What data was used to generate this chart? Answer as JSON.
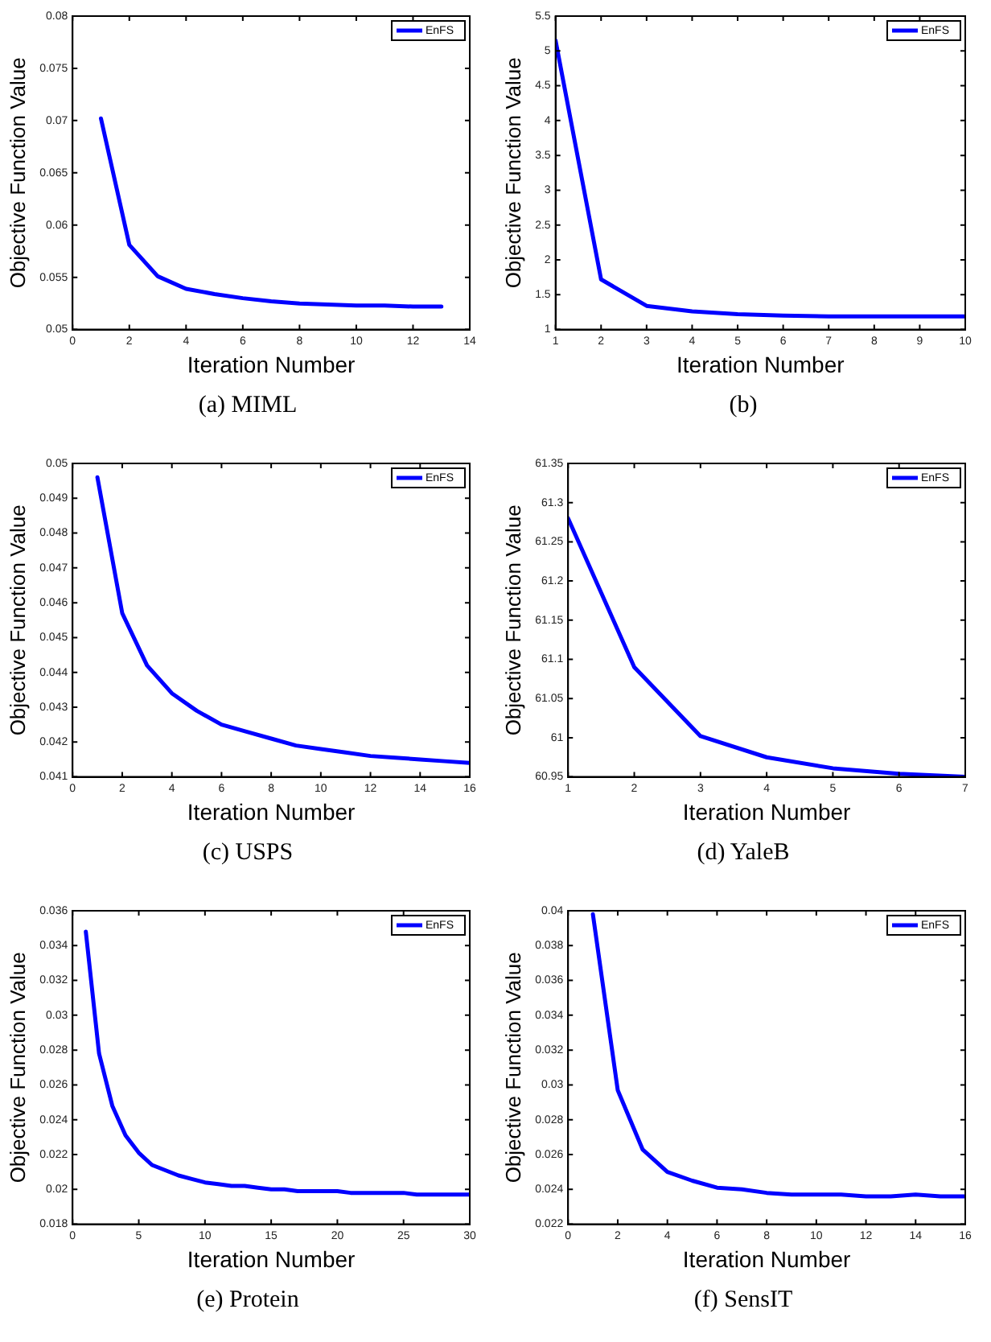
{
  "chart_data": [
    {
      "type": "line",
      "title": "(a) MIML",
      "xlabel": "Iteration Number",
      "ylabel": "Objective Function Value",
      "legend": "top right",
      "grid": false,
      "marker": "none",
      "line_style": "solid",
      "xlim": [
        0,
        14
      ],
      "xticks": [
        0,
        2,
        4,
        6,
        8,
        10,
        12,
        14
      ],
      "ylim": [
        0.05,
        0.08
      ],
      "yticks": [
        0.05,
        0.055,
        0.06,
        0.065,
        0.07,
        0.075,
        0.08
      ],
      "x": [
        1,
        2,
        3,
        4,
        5,
        6,
        7,
        8,
        9,
        10,
        11,
        12,
        13
      ],
      "series": [
        {
          "name": "EnFS",
          "color": "#0000ff",
          "values": [
            0.0702,
            0.0581,
            0.0551,
            0.0539,
            0.0534,
            0.053,
            0.0527,
            0.0525,
            0.0524,
            0.0523,
            0.0523,
            0.0522,
            0.0522
          ]
        }
      ]
    },
    {
      "type": "line",
      "title": "(b)",
      "xlabel": "Iteration Number",
      "ylabel": "Objective Function Value",
      "legend": "top right",
      "grid": false,
      "marker": "none",
      "line_style": "solid",
      "xlim": [
        1,
        10
      ],
      "xticks": [
        1,
        2,
        3,
        4,
        5,
        6,
        7,
        8,
        9,
        10
      ],
      "ylim": [
        1,
        5.5
      ],
      "yticks": [
        1,
        1.5,
        2,
        2.5,
        3,
        3.5,
        4,
        4.5,
        5,
        5.5
      ],
      "x": [
        1,
        2,
        3,
        4,
        5,
        6,
        7,
        8,
        9,
        10
      ],
      "series": [
        {
          "name": "EnFS",
          "color": "#0000ff",
          "values": [
            5.15,
            1.72,
            1.34,
            1.26,
            1.22,
            1.2,
            1.19,
            1.19,
            1.19,
            1.19
          ]
        }
      ]
    },
    {
      "type": "line",
      "title": "(c) USPS",
      "xlabel": "Iteration Number",
      "ylabel": "Objective Function Value",
      "legend": "top right",
      "grid": false,
      "marker": "none",
      "line_style": "solid",
      "xlim": [
        0,
        16
      ],
      "xticks": [
        0,
        2,
        4,
        6,
        8,
        10,
        12,
        14,
        16
      ],
      "ylim": [
        0.041,
        0.05
      ],
      "yticks": [
        0.041,
        0.042,
        0.043,
        0.044,
        0.045,
        0.046,
        0.047,
        0.048,
        0.049,
        0.05
      ],
      "x": [
        1,
        2,
        3,
        4,
        5,
        6,
        7,
        8,
        9,
        10,
        11,
        12,
        13,
        14,
        15,
        16
      ],
      "series": [
        {
          "name": "EnFS",
          "color": "#0000ff",
          "values": [
            0.0496,
            0.0457,
            0.0442,
            0.0434,
            0.0429,
            0.0425,
            0.0423,
            0.0421,
            0.0419,
            0.0418,
            0.0417,
            0.0416,
            0.04155,
            0.0415,
            0.04145,
            0.0414
          ]
        }
      ]
    },
    {
      "type": "line",
      "title": "(d) YaleB",
      "xlabel": "Iteration Number",
      "ylabel": "Objective Function Value",
      "legend": "top right",
      "grid": false,
      "marker": "none",
      "line_style": "solid",
      "xlim": [
        1,
        7
      ],
      "xticks": [
        1,
        2,
        3,
        4,
        5,
        6,
        7
      ],
      "ylim": [
        60.95,
        61.35
      ],
      "yticks": [
        60.95,
        61,
        61.05,
        61.1,
        61.15,
        61.2,
        61.25,
        61.3,
        61.35
      ],
      "x": [
        1,
        2,
        3,
        4,
        5,
        6,
        7
      ],
      "series": [
        {
          "name": "EnFS",
          "color": "#0000ff",
          "values": [
            61.28,
            61.09,
            61.002,
            60.975,
            60.961,
            60.954,
            60.95
          ]
        }
      ]
    },
    {
      "type": "line",
      "title": "(e) Protein",
      "xlabel": "Iteration Number",
      "ylabel": "Objective Function Value",
      "legend": "top right",
      "grid": false,
      "marker": "none",
      "line_style": "solid",
      "xlim": [
        0,
        30
      ],
      "xticks": [
        0,
        5,
        10,
        15,
        20,
        25,
        30
      ],
      "ylim": [
        0.018,
        0.036
      ],
      "yticks": [
        0.018,
        0.02,
        0.022,
        0.024,
        0.026,
        0.028,
        0.03,
        0.032,
        0.034,
        0.036
      ],
      "x": [
        1,
        2,
        3,
        4,
        5,
        6,
        7,
        8,
        9,
        10,
        11,
        12,
        13,
        14,
        15,
        16,
        17,
        18,
        19,
        20,
        21,
        22,
        23,
        24,
        25,
        26,
        27,
        28,
        29,
        30
      ],
      "series": [
        {
          "name": "EnFS",
          "color": "#0000ff",
          "values": [
            0.0348,
            0.0278,
            0.0248,
            0.0231,
            0.0221,
            0.0214,
            0.0211,
            0.0208,
            0.0206,
            0.0204,
            0.0203,
            0.0202,
            0.0202,
            0.0201,
            0.02,
            0.02,
            0.0199,
            0.0199,
            0.0199,
            0.0199,
            0.0198,
            0.0198,
            0.0198,
            0.0198,
            0.0198,
            0.0197,
            0.0197,
            0.0197,
            0.0197,
            0.0197
          ]
        }
      ]
    },
    {
      "type": "line",
      "title": "(f) SensIT",
      "xlabel": "Iteration Number",
      "ylabel": "Objective Function Value",
      "legend": "top right",
      "grid": false,
      "marker": "none",
      "line_style": "solid",
      "xlim": [
        0,
        16
      ],
      "xticks": [
        0,
        2,
        4,
        6,
        8,
        10,
        12,
        14,
        16
      ],
      "ylim": [
        0.022,
        0.04
      ],
      "yticks": [
        0.022,
        0.024,
        0.026,
        0.028,
        0.03,
        0.032,
        0.034,
        0.036,
        0.038,
        0.04
      ],
      "x": [
        1,
        2,
        3,
        4,
        5,
        6,
        7,
        8,
        9,
        10,
        11,
        12,
        13,
        14,
        15,
        16
      ],
      "series": [
        {
          "name": "EnFS",
          "color": "#0000ff",
          "values": [
            0.0398,
            0.0297,
            0.0263,
            0.025,
            0.0245,
            0.0241,
            0.024,
            0.0238,
            0.0237,
            0.0237,
            0.0237,
            0.0236,
            0.0236,
            0.0237,
            0.0236,
            0.0236
          ]
        }
      ]
    }
  ]
}
